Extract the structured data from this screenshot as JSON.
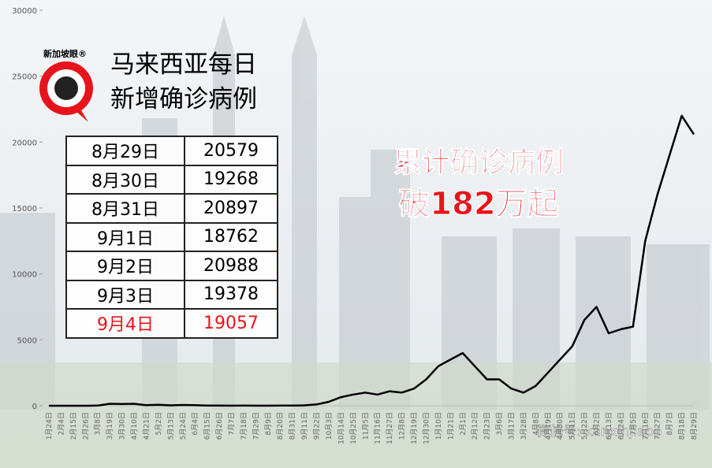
{
  "header": {
    "logo": "新加坡眼®",
    "title_lines": [
      "马来西亚每日",
      "新增确诊病例"
    ]
  },
  "table": {
    "rows": [
      [
        "8月29日",
        "20579"
      ],
      [
        "8月30日",
        "19268"
      ],
      [
        "8月31日",
        "20897"
      ],
      [
        "9月1日",
        "18762"
      ],
      [
        "9月2日",
        "20988"
      ],
      [
        "9月3日",
        "19378"
      ],
      [
        "9月4日",
        "19057"
      ]
    ]
  },
  "annotation": [
    "累计确诊病例",
    "破182万起"
  ],
  "watermark": "微信号: kanxinjiapo",
  "chart_data": {
    "type": "line",
    "x": [
      "1月24日",
      "2月4日",
      "2月15日",
      "2月26日",
      "3月8日",
      "3月19日",
      "3月30日",
      "4月10日",
      "4月21日",
      "5月2日",
      "5月13日",
      "5月24日",
      "6月4日",
      "6月15日",
      "6月26日",
      "7月7日",
      "7月18日",
      "7月29日",
      "8月9日",
      "8月20日",
      "8月31日",
      "9月11日",
      "9月22日",
      "10月3日",
      "10月14日",
      "10月25日",
      "11月5日",
      "11月16日",
      "11月27日",
      "12月8日",
      "12月19日",
      "12月30日",
      "1月10日",
      "1月21日",
      "2月1日",
      "2月12日",
      "2月23日",
      "3月6日",
      "3月17日",
      "3月28日",
      "4月8日",
      "4月19日",
      "4月30日",
      "5月11日",
      "5月22日",
      "6月2日",
      "6月13日",
      "6月24日",
      "7月5日",
      "7月16日",
      "7月27日",
      "8月7日",
      "8月18日",
      "8月29日"
    ],
    "series": [
      {
        "color": "#000000",
        "values": [
          0,
          0,
          0,
          0,
          10,
          150,
          140,
          150,
          50,
          70,
          30,
          60,
          40,
          20,
          10,
          5,
          10,
          5,
          5,
          10,
          10,
          30,
          100,
          300,
          650,
          850,
          1000,
          850,
          1100,
          1000,
          1300,
          2000,
          3000,
          3500,
          4000,
          3000,
          2000,
          2000,
          1300,
          1000,
          1500,
          2500,
          3500,
          4500,
          6500,
          7500,
          5500,
          5800,
          6000,
          12500,
          16000,
          19000,
          22000,
          20579
        ]
      }
    ],
    "ylim": [
      0,
      30000
    ],
    "yticks": [
      0,
      5000,
      10000,
      15000,
      20000,
      25000,
      30000
    ]
  }
}
